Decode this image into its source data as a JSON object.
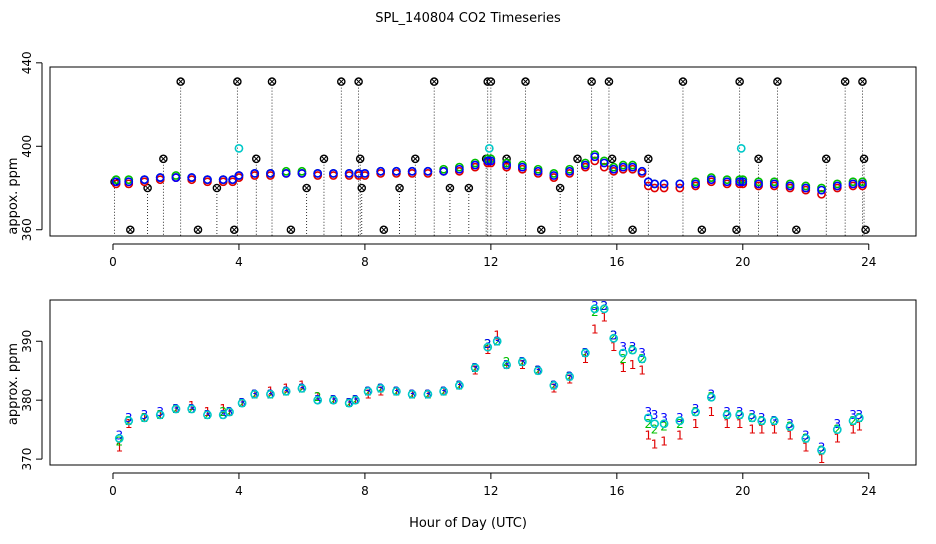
{
  "figure": {
    "title": "SPL_140804  CO2 Timeseries",
    "xlabel": "Hour of Day (UTC)"
  },
  "chart_data": [
    {
      "type": "scatter",
      "ylabel": "appox. ppm",
      "xlim": [
        -2,
        25.5
      ],
      "ylim": [
        357,
        438
      ],
      "xticks": [
        0,
        4,
        8,
        12,
        16,
        20,
        24
      ],
      "xtick_labels": [
        "0",
        "4",
        "8",
        "12",
        "16",
        "20",
        "24"
      ],
      "yticks": [
        360,
        400,
        440
      ],
      "ytick_labels": [
        "360",
        "400",
        "440"
      ],
      "grid": false,
      "series": [
        {
          "color": "#000000",
          "marker": "circle-cross",
          "x": [
            0.05,
            0.55,
            1.1,
            1.6,
            2.15,
            2.7,
            3.3,
            3.85,
            3.95,
            4.55,
            5.05,
            5.65,
            6.15,
            6.7,
            7.25,
            7.8,
            7.85,
            7.9,
            8.6,
            9.1,
            9.6,
            10.2,
            10.7,
            11.3,
            11.85,
            11.9,
            12.0,
            12.5,
            13.1,
            13.6,
            14.2,
            14.75,
            15.2,
            15.75,
            15.85,
            16.5,
            17.0,
            18.1,
            18.7,
            19.8,
            19.9,
            20.5,
            21.1,
            21.7,
            22.65,
            23.25,
            23.8,
            23.85,
            23.9
          ],
          "y": [
            383,
            360,
            380,
            394,
            431,
            360,
            380,
            360,
            431,
            394,
            431,
            360,
            380,
            394,
            431,
            431,
            394,
            380,
            360,
            380,
            394,
            431,
            380,
            380,
            394,
            431,
            431,
            394,
            431,
            360,
            380,
            394,
            431,
            431,
            394,
            360,
            394,
            431,
            360,
            360,
            431,
            394,
            431,
            360,
            394,
            431,
            431,
            394,
            360
          ]
        },
        {
          "color": "#00c8c8",
          "marker": "circle",
          "x": [
            4.0,
            11.95,
            19.95
          ],
          "y": [
            399,
            399,
            399
          ]
        },
        {
          "color": "#e00000",
          "marker": "circle",
          "x": [
            0.1,
            0.5,
            1.0,
            1.5,
            2.0,
            2.5,
            3.0,
            3.5,
            3.8,
            4.0,
            4.5,
            5.0,
            5.5,
            6.0,
            6.5,
            7.0,
            7.5,
            7.8,
            8.0,
            8.5,
            9.0,
            9.5,
            10.0,
            10.5,
            11.0,
            11.5,
            11.9,
            12.0,
            12.5,
            13.0,
            13.5,
            14.0,
            14.5,
            15.0,
            15.3,
            15.6,
            15.9,
            16.2,
            16.5,
            16.8,
            17.0,
            17.2,
            17.5,
            18.0,
            18.5,
            19.0,
            19.5,
            19.9,
            20.0,
            20.5,
            21.0,
            21.5,
            22.0,
            22.5,
            23.0,
            23.5,
            23.8
          ],
          "y": [
            382,
            382,
            383,
            384,
            385,
            384,
            383,
            383,
            383,
            385,
            386,
            386,
            387,
            387,
            386,
            386,
            386,
            386,
            386,
            387,
            387,
            387,
            387,
            388,
            388,
            390,
            392,
            392,
            390,
            389,
            387,
            385,
            387,
            390,
            393,
            390,
            388,
            389,
            389,
            387,
            381,
            380,
            380,
            380,
            381,
            383,
            382,
            382,
            382,
            381,
            381,
            380,
            379,
            377,
            380,
            381,
            381
          ]
        },
        {
          "color": "#00c000",
          "marker": "circle",
          "x": [
            0.1,
            0.5,
            1.0,
            1.5,
            2.0,
            2.5,
            3.0,
            3.5,
            3.8,
            4.0,
            4.5,
            5.0,
            5.5,
            6.0,
            6.5,
            7.0,
            7.5,
            7.8,
            8.0,
            8.5,
            9.0,
            9.5,
            10.0,
            10.5,
            11.0,
            11.5,
            11.9,
            12.0,
            12.5,
            13.0,
            13.5,
            14.0,
            14.5,
            15.0,
            15.3,
            15.6,
            15.9,
            16.2,
            16.5,
            16.8,
            17.0,
            17.2,
            17.5,
            18.0,
            18.5,
            19.0,
            19.5,
            19.9,
            20.0,
            20.5,
            21.0,
            21.5,
            22.0,
            22.5,
            23.0,
            23.5,
            23.8
          ],
          "y": [
            384,
            384,
            384,
            385,
            386,
            385,
            384,
            384,
            384,
            386,
            387,
            387,
            388,
            388,
            387,
            387,
            387,
            387,
            387,
            388,
            388,
            388,
            388,
            389,
            390,
            392,
            394,
            394,
            392,
            391,
            389,
            387,
            389,
            392,
            396,
            393,
            390,
            391,
            391,
            388,
            383,
            382,
            382,
            382,
            383,
            385,
            384,
            384,
            384,
            383,
            383,
            382,
            381,
            380,
            382,
            383,
            383
          ]
        },
        {
          "color": "#0000ff",
          "marker": "circle",
          "x": [
            0.1,
            0.5,
            1.0,
            1.5,
            2.0,
            2.5,
            3.0,
            3.5,
            3.8,
            4.0,
            4.5,
            5.0,
            5.5,
            6.0,
            6.5,
            7.0,
            7.5,
            7.8,
            8.0,
            8.5,
            9.0,
            9.5,
            10.0,
            10.5,
            11.0,
            11.5,
            11.9,
            12.0,
            12.5,
            13.0,
            13.5,
            14.0,
            14.5,
            15.0,
            15.3,
            15.6,
            15.9,
            16.2,
            16.5,
            16.8,
            17.0,
            17.2,
            17.5,
            18.0,
            18.5,
            19.0,
            19.5,
            19.9,
            20.0,
            20.5,
            21.0,
            21.5,
            22.0,
            22.5,
            23.0,
            23.5,
            23.8
          ],
          "y": [
            383,
            383,
            384,
            385,
            385,
            385,
            384,
            384,
            384,
            386,
            387,
            387,
            387,
            387,
            387,
            387,
            387,
            387,
            387,
            388,
            388,
            388,
            388,
            388,
            389,
            391,
            393,
            393,
            391,
            390,
            388,
            386,
            388,
            391,
            395,
            392,
            389,
            390,
            390,
            388,
            383,
            382,
            382,
            382,
            382,
            384,
            383,
            383,
            383,
            382,
            382,
            381,
            380,
            379,
            381,
            382,
            382
          ]
        }
      ]
    },
    {
      "type": "scatter",
      "ylabel": "approx. ppm",
      "xlim": [
        -2,
        25.5
      ],
      "ylim": [
        369,
        397
      ],
      "xticks": [
        0,
        4,
        8,
        12,
        16,
        20,
        24
      ],
      "xtick_labels": [
        "0",
        "4",
        "8",
        "12",
        "16",
        "20",
        "24"
      ],
      "yticks": [
        370,
        380,
        390
      ],
      "ytick_labels": [
        "370",
        "380",
        "390"
      ],
      "grid": false,
      "series": [
        {
          "color": "#e00000",
          "marker": "text",
          "symbol": "1",
          "x": [
            0.2,
            0.5,
            1.0,
            1.5,
            2.0,
            2.5,
            3.0,
            3.5,
            3.7,
            4.1,
            4.5,
            5.0,
            5.5,
            6.0,
            6.5,
            7.0,
            7.5,
            7.7,
            8.1,
            8.5,
            9.0,
            9.5,
            10.0,
            10.5,
            11.0,
            11.5,
            11.9,
            12.2,
            12.5,
            13.0,
            13.5,
            14.0,
            14.5,
            15.0,
            15.3,
            15.6,
            15.9,
            16.2,
            16.5,
            16.8,
            17.0,
            17.2,
            17.5,
            18.0,
            18.5,
            19.0,
            19.5,
            19.9,
            20.3,
            20.6,
            21.0,
            21.5,
            22.0,
            22.5,
            23.0,
            23.5,
            23.7
          ],
          "y": [
            372,
            376,
            377,
            377.5,
            378.5,
            379,
            378,
            378.5,
            378,
            379.5,
            381,
            381.5,
            382,
            382.5,
            380.5,
            380,
            379.5,
            380,
            381,
            381.5,
            381.5,
            381,
            381,
            381.5,
            382.5,
            385,
            388.5,
            391,
            386,
            386,
            385,
            382,
            383.5,
            387,
            392,
            394,
            389,
            385.5,
            386,
            385,
            374,
            372.5,
            373,
            374,
            376,
            378,
            376,
            376,
            375,
            375,
            375,
            374,
            372,
            370,
            373.5,
            375,
            375.5
          ]
        },
        {
          "color": "#00c000",
          "marker": "text",
          "symbol": "2",
          "x": [
            0.2,
            0.5,
            1.0,
            1.5,
            2.0,
            2.5,
            3.0,
            3.5,
            3.7,
            4.1,
            4.5,
            5.0,
            5.5,
            6.0,
            6.5,
            7.0,
            7.5,
            7.7,
            8.1,
            8.5,
            9.0,
            9.5,
            10.0,
            10.5,
            11.0,
            11.5,
            11.9,
            12.2,
            12.5,
            13.0,
            13.5,
            14.0,
            14.5,
            15.0,
            15.3,
            15.6,
            15.9,
            16.2,
            16.5,
            16.8,
            17.0,
            17.2,
            17.5,
            18.0,
            18.5,
            19.0,
            19.5,
            19.9,
            20.3,
            20.6,
            21.0,
            21.5,
            22.0,
            22.5,
            23.0,
            23.5,
            23.7
          ],
          "y": [
            373,
            376.5,
            377,
            377.5,
            378.5,
            378.5,
            377.5,
            378,
            378,
            379.5,
            381,
            381,
            381.5,
            382,
            380.5,
            380,
            379.5,
            380,
            381.5,
            382,
            381.5,
            381,
            381,
            381.5,
            382.5,
            385.5,
            389.5,
            390,
            386.5,
            386.5,
            385,
            382.5,
            384,
            388,
            395,
            396,
            391,
            387,
            388.5,
            387,
            376,
            375,
            375.5,
            376,
            378,
            380.5,
            377.5,
            377.5,
            377,
            376.5,
            376.5,
            375.5,
            373.5,
            371.5,
            375,
            376.5,
            377
          ]
        },
        {
          "color": "#0000ff",
          "marker": "text",
          "symbol": "3",
          "x": [
            0.2,
            0.5,
            1.0,
            1.5,
            2.0,
            2.5,
            3.0,
            3.5,
            3.7,
            4.1,
            4.5,
            5.0,
            5.5,
            6.0,
            6.5,
            7.0,
            7.5,
            7.7,
            8.1,
            8.5,
            9.0,
            9.5,
            10.0,
            10.5,
            11.0,
            11.5,
            11.9,
            12.2,
            12.5,
            13.0,
            13.5,
            14.0,
            14.5,
            15.0,
            15.3,
            15.6,
            15.9,
            16.2,
            16.5,
            16.8,
            17.0,
            17.2,
            17.5,
            18.0,
            18.5,
            19.0,
            19.5,
            19.9,
            20.3,
            20.6,
            21.0,
            21.5,
            22.0,
            22.5,
            23.0,
            23.5,
            23.7
          ],
          "y": [
            374,
            377,
            377.5,
            378,
            378.5,
            378.5,
            377.5,
            377.5,
            378,
            379.5,
            381,
            381,
            381.5,
            382,
            380,
            380,
            379.5,
            380,
            381.5,
            382,
            381.5,
            381,
            381,
            381.5,
            382.5,
            385.5,
            389.5,
            390,
            386,
            386.5,
            385,
            382.5,
            384,
            388,
            396,
            396,
            391,
            389,
            389,
            388,
            378,
            377.5,
            377,
            377,
            378.5,
            381,
            378,
            378,
            377.5,
            377,
            376.5,
            376,
            374,
            372,
            376,
            377.5,
            377.5
          ]
        },
        {
          "color": "#00c8c8",
          "marker": "circle",
          "x": [
            0.2,
            0.5,
            1.0,
            1.5,
            2.0,
            2.5,
            3.0,
            3.5,
            3.7,
            4.1,
            4.5,
            5.0,
            5.5,
            6.0,
            6.5,
            7.0,
            7.5,
            7.7,
            8.1,
            8.5,
            9.0,
            9.5,
            10.0,
            10.5,
            11.0,
            11.5,
            11.9,
            12.2,
            12.5,
            13.0,
            13.5,
            14.0,
            14.5,
            15.0,
            15.3,
            15.6,
            15.9,
            16.2,
            16.5,
            16.8,
            17.0,
            17.2,
            17.5,
            18.0,
            18.5,
            19.0,
            19.5,
            19.9,
            20.3,
            20.6,
            21.0,
            21.5,
            22.0,
            22.5,
            23.0,
            23.5,
            23.7
          ],
          "y": [
            373.5,
            376.5,
            377,
            377.5,
            378.5,
            378.5,
            377.5,
            377.5,
            378,
            379.5,
            381,
            381,
            381.5,
            382,
            380,
            380,
            379.5,
            380,
            381.5,
            382,
            381.5,
            381,
            381,
            381.5,
            382.5,
            385.5,
            389,
            390,
            386,
            386.5,
            385,
            382.5,
            384,
            388,
            395.5,
            395.5,
            390.5,
            388,
            388.5,
            387,
            377,
            376,
            376,
            376.5,
            378,
            380.5,
            377.5,
            377.5,
            377,
            376.5,
            376.5,
            375.5,
            373.5,
            371.5,
            375,
            376.5,
            377
          ]
        }
      ]
    }
  ]
}
